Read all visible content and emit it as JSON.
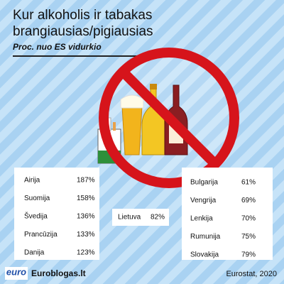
{
  "header": {
    "title_line1": "Kur alkoholis ir tabakas",
    "title_line2": "brangiausias/pigiausias",
    "subtitle": "Proc. nuo ES vidurkio"
  },
  "left_table": {
    "rows": [
      [
        "Airija",
        "187%"
      ],
      [
        "Suomija",
        "158%"
      ],
      [
        "Švedija",
        "136%"
      ],
      [
        "Prancūzija",
        "133%"
      ],
      [
        "Danija",
        "123%"
      ]
    ]
  },
  "center": {
    "label": "Lietuva",
    "value": "82%"
  },
  "right_table": {
    "rows": [
      [
        "Bulgarija",
        "61%"
      ],
      [
        "Vengrija",
        "69%"
      ],
      [
        "Lenkija",
        "70%"
      ],
      [
        "Rumunija",
        "75%"
      ],
      [
        "Slovakija",
        "79%"
      ]
    ]
  },
  "footer": {
    "logo": "euro",
    "site": "Euroblogas.lt",
    "source": "Eurostat, 2020"
  }
}
